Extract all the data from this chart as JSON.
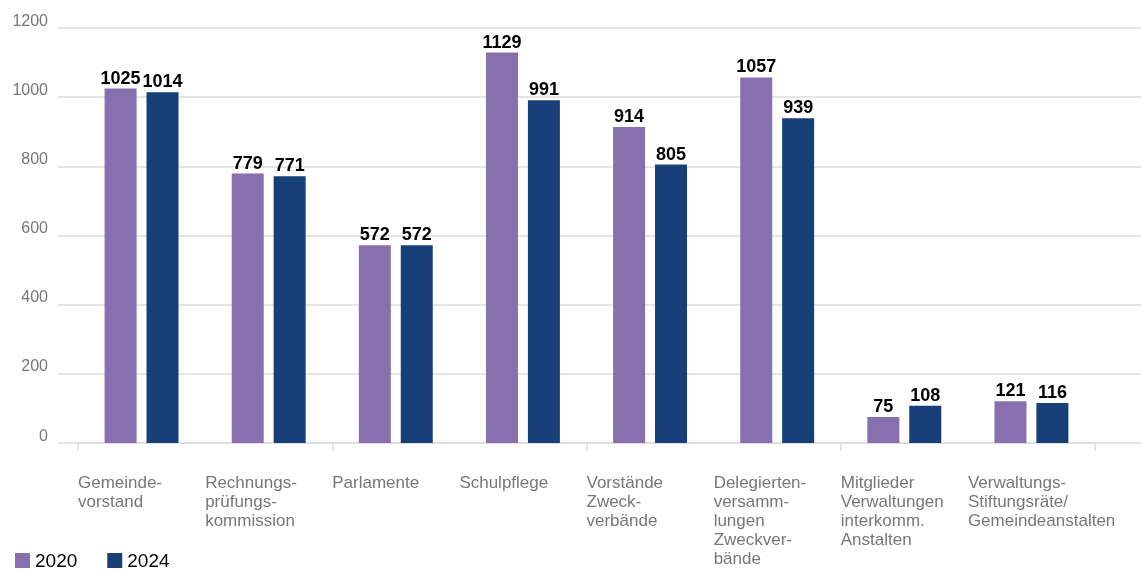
{
  "chart_data": {
    "type": "bar",
    "categories": [
      "Gemeinde-\nvorstand",
      "Rechnungs-\nprüfungs-\nkommission",
      "Parlamente",
      "Schulpflege",
      "Vorstände\nZweck-\nverbände",
      "Delegierten-\nversamm-\nlungen\nZweckver-\nbände",
      "Mitglieder\nVerwaltungen\ninterkomm.\nAnstalten",
      "Verwaltungs-\nStiftungsräte/\nGemeindeanstalten"
    ],
    "series": [
      {
        "name": "2020",
        "color": "#8670ae",
        "values": [
          1025,
          779,
          572,
          1129,
          914,
          1057,
          75,
          121
        ]
      },
      {
        "name": "2024",
        "color": "#173f78",
        "values": [
          1014,
          771,
          572,
          991,
          805,
          939,
          108,
          116
        ]
      }
    ],
    "ylim": [
      0,
      1200
    ],
    "yticks": [
      0,
      200,
      400,
      600,
      800,
      1000,
      1200
    ],
    "grid": "y",
    "legend": "bottom left",
    "data_labels": true
  }
}
